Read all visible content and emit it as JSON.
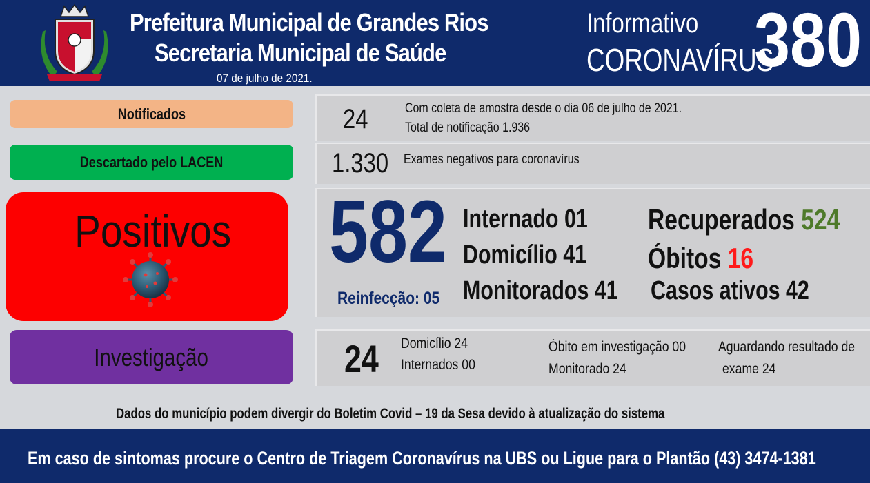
{
  "header": {
    "title_line1": "Prefeitura Municipal de Grandes Rios",
    "title_line2": "Secretaria Municipal de Saúde",
    "date": "07 de julho de 2021.",
    "info_line1": "Informativo",
    "info_line2": "CORONAVÍRUS",
    "issue_number": "380"
  },
  "notificados": {
    "label": "Notificados",
    "value": "24",
    "note1": "Com coleta de amostra desde o dia 06 de julho de 2021.",
    "note2": "Total de notificação 1.936"
  },
  "descartado": {
    "label": "Descartado  pelo LACEN",
    "value": "1.330",
    "note": "Exames negativos  para coronavírus"
  },
  "positivos": {
    "label": "Positivos",
    "value": "582",
    "reinfeccao": "Reinfecção: 05",
    "internado": "Internado 01",
    "domicilio": "Domicílio 41",
    "monitorados": "Monitorados 41",
    "recuperados_label": "Recuperados",
    "recuperados_value": "524",
    "obitos_label": "Óbitos",
    "obitos_value": "16",
    "casos_ativos": "Casos ativos 42"
  },
  "investigacao": {
    "label": "Investigação",
    "value": "24",
    "domicilio": "Domicílio 24",
    "internados": "Internados 00",
    "obito": "Óbito  em investigação  00",
    "monitorado": "Monitorado 24",
    "aguardando1": "Aguardando resultado de",
    "aguardando2": "exame 24"
  },
  "disclaimer": "Dados do município podem  divergir  do Boletim  Covid – 19 da Sesa devido à atualização  do sistema",
  "footer": "Em caso de sintomas  procure  o Centro de Triagem  Coronavírus  na UBS ou Ligue  para o Plantão  (43) 3474-1381",
  "colors": {
    "navy": "#0f2a6b",
    "notificados": "#f3b486",
    "descartado": "#00b050",
    "positivos": "#fd0000",
    "investigacao": "#7030a0",
    "recuperados": "#4e7a2a",
    "obitos": "#ff1a1a"
  },
  "icons": {
    "crest": "municipal-coat-of-arms",
    "virus": "coronavirus-icon"
  }
}
